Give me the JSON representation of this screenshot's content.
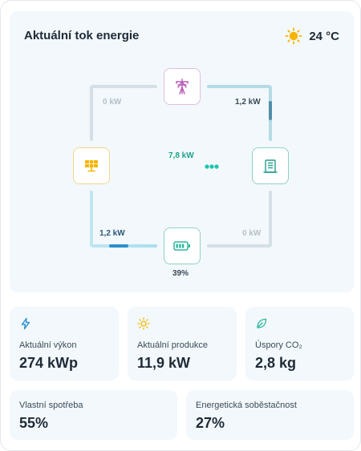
{
  "energy_flow": {
    "title": "Aktuální tok energie",
    "weather": {
      "temperature": "24 °C",
      "icon": "sun-icon"
    },
    "flows": {
      "grid_to_solar": "0 kW",
      "grid_to_house": "1,2 kW",
      "solar_to_house": "7,8 kW",
      "solar_to_battery": "1,2 kW",
      "battery_to_house": "0 kW"
    },
    "battery_level": "39%",
    "nodes": [
      "grid-icon",
      "solar-panel-icon",
      "house-icon",
      "battery-icon"
    ]
  },
  "stats": {
    "current_power": {
      "label": "Aktuální výkon",
      "value": "274 kWp",
      "icon": "lightning-icon"
    },
    "current_production": {
      "label": "Aktuální produkce",
      "value": "11,9 kW",
      "icon": "sun-icon"
    },
    "co2_savings": {
      "label": "Úspory CO₂",
      "value": "2,8 kg",
      "icon": "leaf-icon"
    },
    "self_consumption": {
      "label": "Vlastní spotřeba",
      "value": "55%"
    },
    "self_sufficiency": {
      "label": "Energetická soběstačnost",
      "value": "27%"
    }
  },
  "colors": {
    "panel_bg": "#f2f8fb",
    "solar": "#f5b400",
    "grid": "#b65bb8",
    "house": "#1f9e8e",
    "battery": "#2bb5a0",
    "flow_active_teal": "#1fc4b0",
    "flow_active_blue": "#2b8fd0",
    "flow_inactive": "#d4e0e6"
  }
}
